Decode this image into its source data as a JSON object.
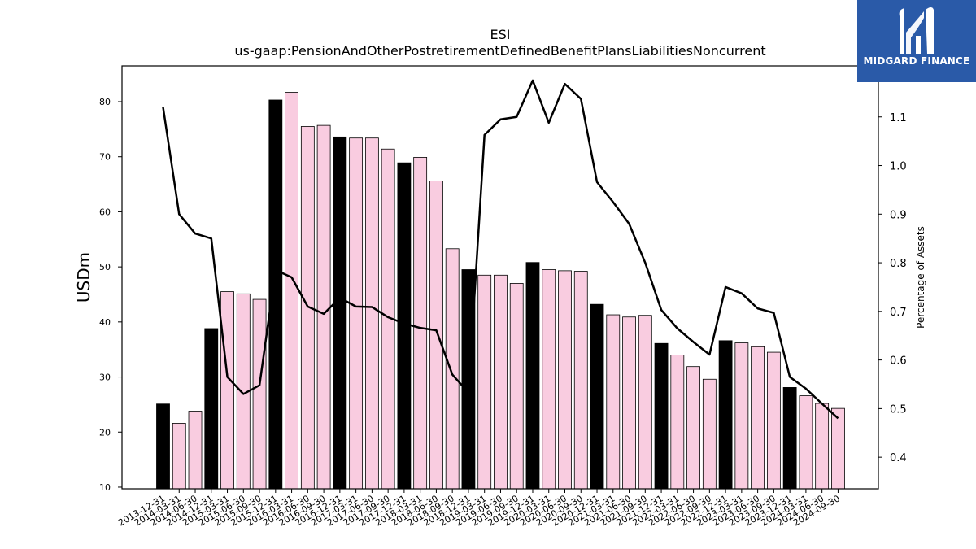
{
  "brand": {
    "name": "MIDGARD FINANCE",
    "bg_color": "#2a5aa8"
  },
  "chart_data": {
    "type": "bar",
    "title": "ESI",
    "subtitle": "us-gaap:PensionAndOtherPostretirementDefinedBenefitPlansLiabilitiesNoncurrent",
    "ylabel": "USDm",
    "y2label": "Percentage of Assets",
    "ylim": [
      9.7,
      86.5
    ],
    "y2lim": [
      0.335,
      1.205
    ],
    "yticks": [
      10,
      20,
      30,
      40,
      50,
      60,
      70,
      80
    ],
    "y2ticks": [
      0.4,
      0.5,
      0.6,
      0.7,
      0.8,
      0.9,
      1.0,
      1.1
    ],
    "categories": [
      "2013-12-31",
      "2014-03-31",
      "2014-06-30",
      "2014-12-31",
      "2015-03-31",
      "2015-06-30",
      "2015-09-30",
      "2015-12-31",
      "2016-03-31",
      "2016-06-30",
      "2016-09-30",
      "2016-12-31",
      "2017-03-31",
      "2017-06-30",
      "2017-09-30",
      "2017-12-31",
      "2018-03-31",
      "2018-06-30",
      "2018-09-30",
      "2018-12-31",
      "2019-03-31",
      "2019-06-30",
      "2019-09-30",
      "2019-12-31",
      "2020-03-31",
      "2020-06-30",
      "2020-09-30",
      "2020-12-31",
      "2021-03-31",
      "2021-06-30",
      "2021-09-30",
      "2021-12-31",
      "2022-03-31",
      "2022-06-30",
      "2022-09-30",
      "2022-12-31",
      "2023-03-31",
      "2023-06-30",
      "2023-09-30",
      "2023-12-31",
      "2024-03-31",
      "2024-06-30",
      "2024-09-30"
    ],
    "series": [
      {
        "type": "bar",
        "values": [
          25.1,
          21.6,
          23.8,
          38.8,
          45.5,
          45.1,
          44.1,
          80.3,
          81.7,
          75.5,
          75.7,
          73.6,
          73.4,
          73.4,
          71.4,
          68.9,
          69.9,
          65.6,
          53.3,
          49.5,
          48.5,
          48.5,
          47.0,
          50.8,
          49.5,
          49.3,
          49.2,
          43.2,
          41.3,
          40.9,
          41.2,
          36.1,
          34.0,
          31.9,
          29.6,
          36.6,
          36.2,
          35.5,
          34.5,
          28.1,
          26.6,
          25.2,
          24.3
        ],
        "annual_color": "#000000",
        "quarter_color": "#f9cce0"
      },
      {
        "type": "line",
        "axis": "right",
        "color": "#000000",
        "values": [
          1.12,
          0.9,
          0.86,
          0.85,
          0.565,
          0.53,
          0.548,
          0.785,
          0.77,
          0.71,
          0.695,
          0.728,
          0.71,
          0.709,
          0.688,
          0.675,
          0.666,
          0.661,
          0.57,
          0.533,
          1.063,
          1.095,
          1.1,
          1.175,
          1.088,
          1.168,
          1.137,
          0.966,
          0.925,
          0.88,
          0.8,
          0.703,
          0.665,
          0.637,
          0.611,
          0.75,
          0.737,
          0.706,
          0.697,
          0.565,
          0.541,
          0.51,
          0.48
        ]
      }
    ],
    "grid": false
  }
}
